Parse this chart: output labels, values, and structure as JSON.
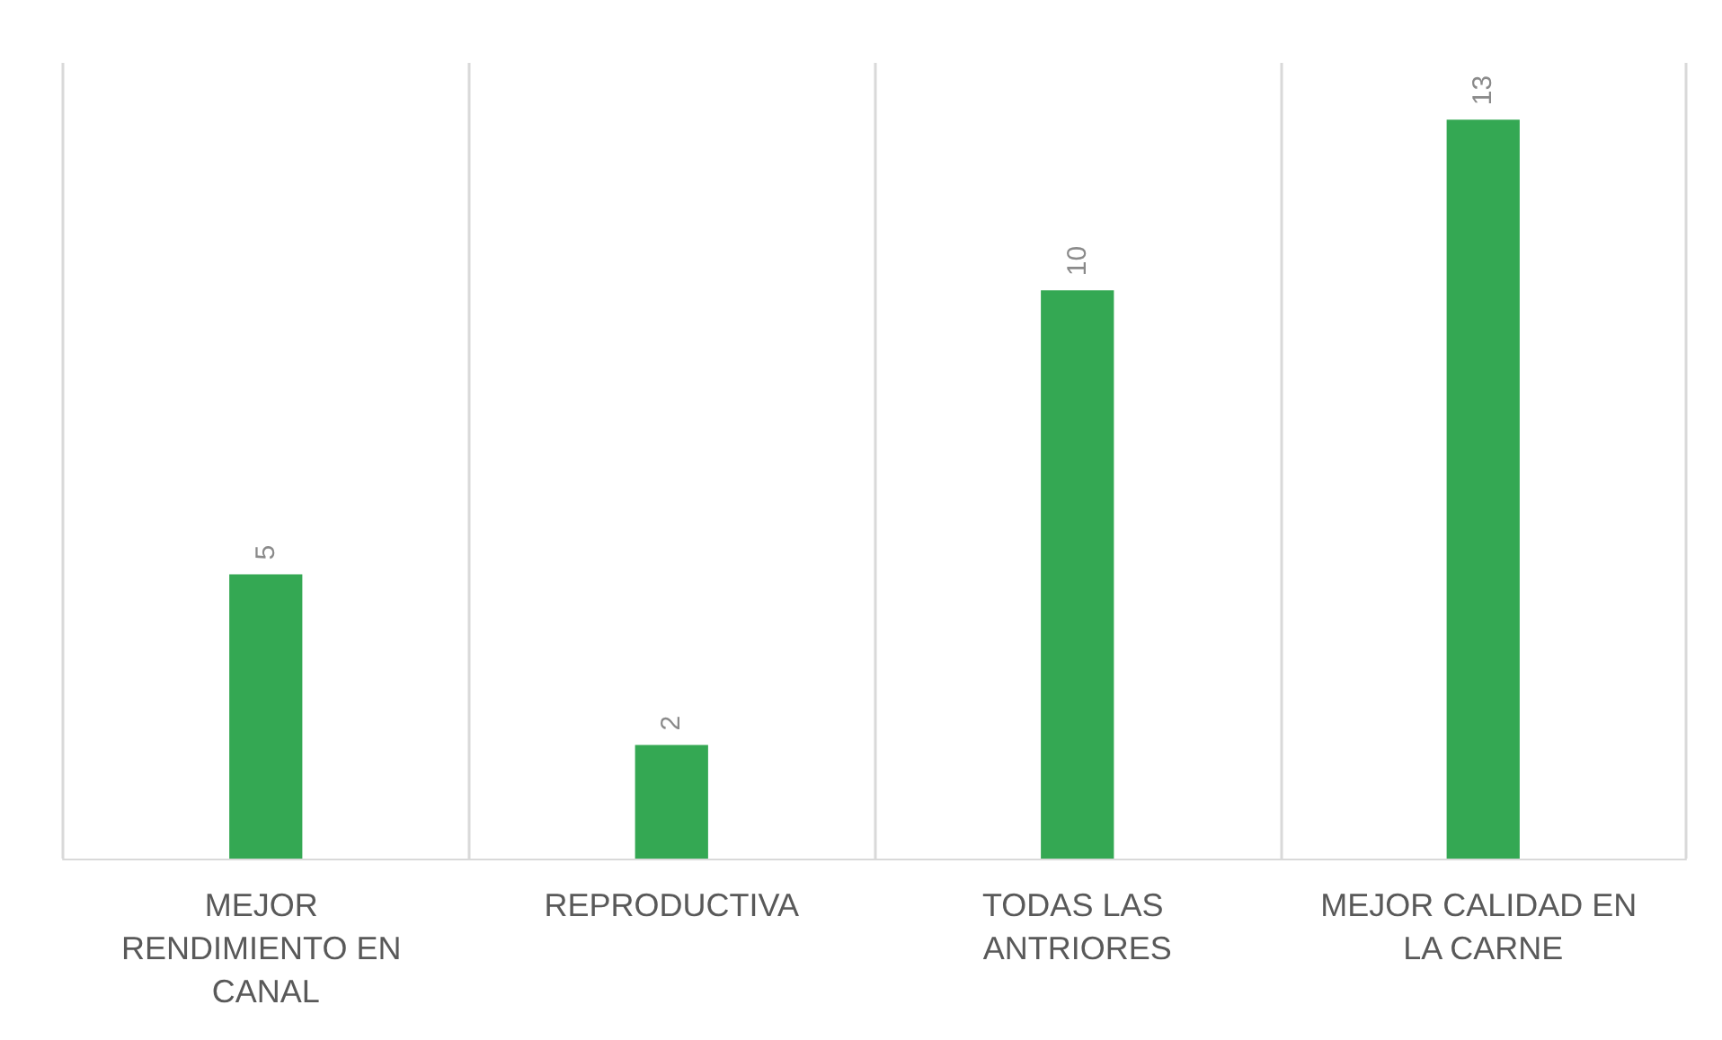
{
  "chart_data": {
    "type": "bar",
    "categories": [
      "MEJOR RENDIMIENTO EN CANAL",
      "REPRODUCTIVA",
      "TODAS LAS ANTRIORES",
      "MEJOR CALIDAD EN LA CARNE"
    ],
    "values": [
      5,
      2,
      10,
      13
    ],
    "color": "#34a853",
    "ylim": [
      0,
      14
    ],
    "data_labels": true,
    "grid": "x",
    "tick_labels": "x"
  }
}
